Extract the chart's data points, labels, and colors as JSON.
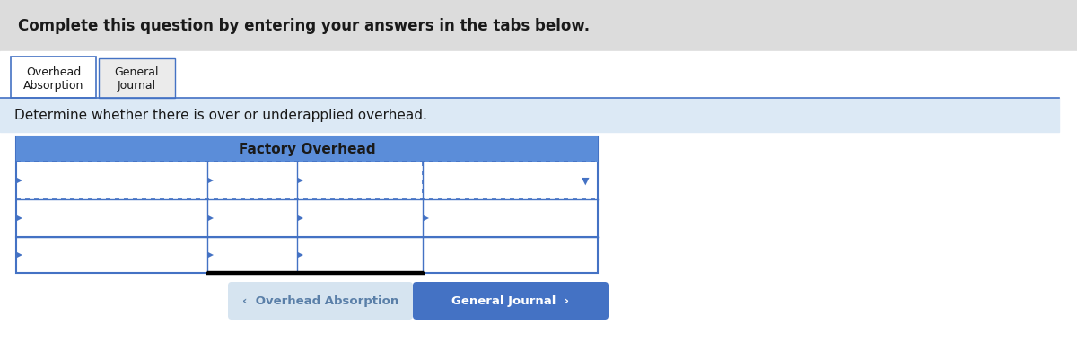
{
  "bg_top": "#dcdcdc",
  "bg_white": "#ffffff",
  "bg_light_blue": "#dce9f5",
  "bg_blue_header": "#5b8dd9",
  "btn_blue": "#4472c4",
  "btn_gray": "#d6e4f0",
  "text_dark": "#1a1a1a",
  "text_white": "#ffffff",
  "text_gray_btn": "#5a7fa8",
  "border_blue": "#4472c4",
  "border_dark": "#1a1a1a",
  "top_text": "Complete this question by entering your answers in the tabs below.",
  "tab1_line1": "Overhead",
  "tab1_line2": "Absorption",
  "tab2_line1": "General",
  "tab2_line2": "Journal",
  "instruction": "Determine whether there is over or underapplied overhead.",
  "table_title": "Factory Overhead",
  "btn_left_text": "‹  Overhead Absorption",
  "btn_right_text": "General Journal  ›",
  "figsize": [
    12.0,
    4.02
  ],
  "dpi": 100
}
